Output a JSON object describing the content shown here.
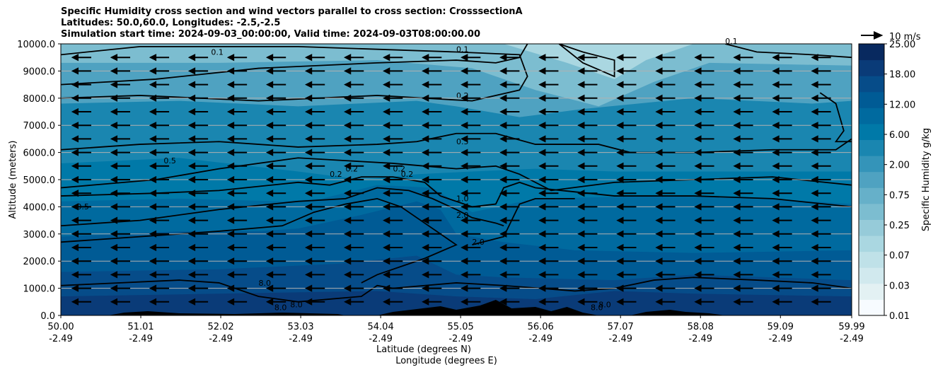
{
  "chart_data": {
    "type": "contour",
    "title_lines": [
      "Specific Humidity cross section and wind vectors parallel to cross section: CrosssectionA",
      "Latitudes: 50.0,60.0, Longitudes: -2.5,-2.5",
      "Simulation start time: 2024-09-03_00:00:00, Valid time: 2024-09-03T08:00:00.00"
    ],
    "ylabel": "Altitude (meters)",
    "xlabel_lines": [
      "Latitude (degrees N)",
      "Longitude (degrees E)"
    ],
    "x_ticks": [
      {
        "lat": "50.00",
        "lon": "-2.49"
      },
      {
        "lat": "51.01",
        "lon": "-2.49"
      },
      {
        "lat": "52.02",
        "lon": "-2.49"
      },
      {
        "lat": "53.03",
        "lon": "-2.49"
      },
      {
        "lat": "54.04",
        "lon": "-2.49"
      },
      {
        "lat": "55.05",
        "lon": "-2.49"
      },
      {
        "lat": "56.06",
        "lon": "-2.49"
      },
      {
        "lat": "57.07",
        "lon": "-2.49"
      },
      {
        "lat": "58.08",
        "lon": "-2.49"
      },
      {
        "lat": "59.09",
        "lon": "-2.49"
      },
      {
        "lat": "59.99",
        "lon": "-2.49"
      }
    ],
    "x_range": [
      50.0,
      59.99
    ],
    "y_range": [
      0,
      10000
    ],
    "y_ticks": [
      "0.0",
      "1000.0",
      "2000.0",
      "3000.0",
      "4000.0",
      "5000.0",
      "6000.0",
      "7000.0",
      "8000.0",
      "9000.0",
      "10000.0"
    ],
    "colorbar": {
      "label": "Specific Humidity g/kg",
      "tick_labels": [
        "0.01",
        "0.03",
        "0.07",
        "0.25",
        "0.75",
        "2.00",
        "6.00",
        "12.00",
        "18.00",
        "25.00"
      ],
      "levels": [
        0.01,
        0.02,
        0.03,
        0.05,
        0.07,
        0.1,
        0.25,
        0.5,
        0.75,
        1.0,
        2.0,
        4.0,
        6.0,
        8.0,
        12.0,
        15.0,
        18.0,
        25.0
      ],
      "colors": [
        "#f7fbff",
        "#e3f1f3",
        "#d1e9ee",
        "#bfe1e8",
        "#aad7e1",
        "#96cbd9",
        "#7cbdd0",
        "#66b0c9",
        "#4fa2c1",
        "#3494b9",
        "#1a86b0",
        "#0079a8",
        "#006a9f",
        "#005b95",
        "#064c89",
        "#0a3b78",
        "#08295f"
      ]
    },
    "quiver_key_label": "10 m/s",
    "contour_labels": [
      "0.1",
      "0.1",
      "0.1",
      "0.2",
      "0.5",
      "0.5",
      "0.5",
      "0.2",
      "0.2",
      "0.2",
      "0.2",
      "1.0",
      "2.0",
      "2.0",
      "8.0",
      "8.0",
      "8.0",
      "8.0",
      "8.0"
    ],
    "grid": "horizontal"
  }
}
